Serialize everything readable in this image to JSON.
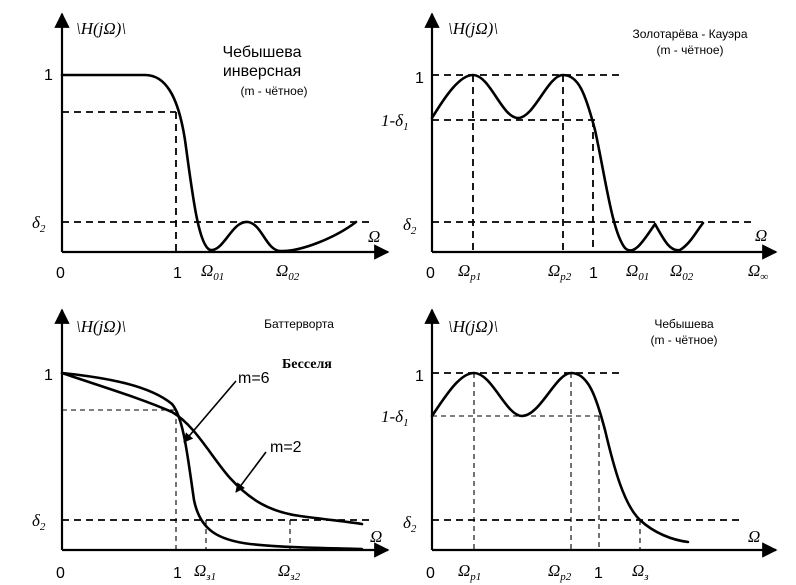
{
  "panels": {
    "p1": {
      "title_lines": [
        "Чебышева",
        "инверсная",
        "(m -  чётное)"
      ],
      "ylabel": "\\H(jΩ)\\",
      "xlabel": "Ω",
      "y_one": "1",
      "delta2": "δ",
      "delta2_sub": "2",
      "x_zero": "0",
      "x_one": "1",
      "omega01": "Ω",
      "omega01_sub": "01",
      "omega02": "Ω",
      "omega02_sub": "02"
    },
    "p2": {
      "title_lines": [
        "Золотарёва - Кауэра",
        "(m -  чётное)"
      ],
      "ylabel": "\\H(jΩ)\\",
      "xlabel": "Ω",
      "y_one": "1",
      "one_minus_delta": "1-δ",
      "one_minus_delta_sub": "1",
      "delta2": "δ",
      "delta2_sub": "2",
      "x_zero": "0",
      "omega_p1": "Ω",
      "omega_p1_sub": "p1",
      "omega_p2": "Ω",
      "omega_p2_sub": "p2",
      "x_one": "1",
      "omega01": "Ω",
      "omega01_sub": "01",
      "omega02": "Ω",
      "omega02_sub": "02",
      "omega_inf": "Ω",
      "omega_inf_sub": "∞"
    },
    "p3": {
      "title": "Баттерворта",
      "overlay_text": "Бесселя",
      "ylabel": "\\H(jΩ)\\",
      "xlabel": "Ω",
      "y_one": "1",
      "delta2": "δ",
      "delta2_sub": "2",
      "m6_label": "m=6",
      "m2_label": "m=2",
      "x_zero": "0",
      "x_one": "1",
      "omega31": "Ω",
      "omega31_sub": "з1",
      "omega32": "Ω",
      "omega32_sub": "з2"
    },
    "p4": {
      "title_lines": [
        "Чебышева",
        "(m -  чётное)"
      ],
      "ylabel": "\\H(jΩ)\\",
      "xlabel": "Ω",
      "y_one": "1",
      "one_minus_delta": "1-δ",
      "one_minus_delta_sub": "1",
      "delta2": "δ",
      "delta2_sub": "2",
      "x_zero": "0",
      "omega_p1": "Ω",
      "omega_p1_sub": "p1",
      "omega_p2": "Ω",
      "omega_p2_sub": "p2",
      "x_one": "1",
      "omega3": "Ω",
      "omega3_sub": "з"
    }
  }
}
